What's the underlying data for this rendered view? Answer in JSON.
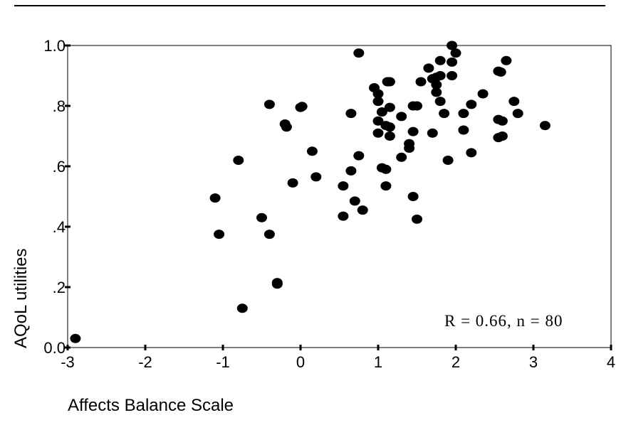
{
  "chart_data": {
    "type": "scatter",
    "xlabel": "Affects Balance Scale",
    "ylabel": "AQoL utilities",
    "xlim": [
      -3,
      4
    ],
    "ylim": [
      0,
      1
    ],
    "xticks": [
      -3,
      -2,
      -1,
      0,
      1,
      2,
      3,
      4
    ],
    "xtick_labels": [
      "-3",
      "-2",
      "-1",
      "0",
      "1",
      "2",
      "3",
      "4"
    ],
    "yticks": [
      0,
      0.2,
      0.4,
      0.6,
      0.8,
      1.0
    ],
    "ytick_labels": [
      "0.0",
      ".2",
      ".4",
      ".6",
      ".8",
      "1.0"
    ],
    "annotation": "R = 0.66, n = 80",
    "grid": false,
    "points": [
      [
        -2.9,
        0.03
      ],
      [
        -1.1,
        0.495
      ],
      [
        -1.05,
        0.375
      ],
      [
        -0.8,
        0.62
      ],
      [
        -0.75,
        0.13
      ],
      [
        -0.5,
        0.43
      ],
      [
        -0.4,
        0.805
      ],
      [
        -0.4,
        0.375
      ],
      [
        -0.3,
        0.215
      ],
      [
        -0.3,
        0.21
      ],
      [
        -0.2,
        0.74
      ],
      [
        -0.18,
        0.73
      ],
      [
        -0.1,
        0.545
      ],
      [
        0.0,
        0.795
      ],
      [
        0.15,
        0.65
      ],
      [
        0.2,
        0.565
      ],
      [
        0.55,
        0.535
      ],
      [
        0.55,
        0.435
      ],
      [
        0.65,
        0.775
      ],
      [
        0.65,
        0.585
      ],
      [
        0.7,
        0.485
      ],
      [
        0.75,
        0.975
      ],
      [
        0.75,
        0.635
      ],
      [
        0.8,
        0.455
      ],
      [
        0.95,
        0.86
      ],
      [
        1.0,
        0.84
      ],
      [
        1.0,
        0.815
      ],
      [
        1.0,
        0.75
      ],
      [
        1.0,
        0.71
      ],
      [
        1.05,
        0.78
      ],
      [
        1.05,
        0.595
      ],
      [
        1.1,
        0.735
      ],
      [
        1.1,
        0.59
      ],
      [
        1.1,
        0.535
      ],
      [
        1.15,
        0.88
      ],
      [
        1.15,
        0.795
      ],
      [
        1.15,
        0.73
      ],
      [
        1.15,
        0.7
      ],
      [
        1.3,
        0.765
      ],
      [
        1.3,
        0.63
      ],
      [
        1.4,
        0.675
      ],
      [
        1.4,
        0.66
      ],
      [
        1.45,
        0.8
      ],
      [
        1.45,
        0.715
      ],
      [
        1.45,
        0.5
      ],
      [
        1.5,
        0.425
      ],
      [
        1.55,
        0.88
      ],
      [
        1.65,
        0.925
      ],
      [
        1.7,
        0.89
      ],
      [
        1.7,
        0.71
      ],
      [
        1.75,
        0.895
      ],
      [
        1.75,
        0.87
      ],
      [
        1.75,
        0.845
      ],
      [
        1.8,
        0.95
      ],
      [
        1.8,
        0.9
      ],
      [
        1.8,
        0.815
      ],
      [
        1.85,
        0.775
      ],
      [
        1.9,
        0.62
      ],
      [
        1.95,
        1.0
      ],
      [
        1.95,
        0.945
      ],
      [
        1.95,
        0.9
      ],
      [
        2.0,
        0.975
      ],
      [
        2.1,
        0.775
      ],
      [
        2.1,
        0.72
      ],
      [
        2.2,
        0.805
      ],
      [
        2.2,
        0.645
      ],
      [
        2.35,
        0.84
      ],
      [
        2.55,
        0.915
      ],
      [
        2.55,
        0.755
      ],
      [
        2.55,
        0.695
      ],
      [
        2.58,
        0.912
      ],
      [
        2.6,
        0.75
      ],
      [
        2.6,
        0.7
      ],
      [
        2.65,
        0.95
      ],
      [
        2.75,
        0.815
      ],
      [
        2.8,
        0.775
      ],
      [
        3.15,
        0.735
      ],
      [
        0.02,
        0.798
      ],
      [
        1.12,
        0.88
      ],
      [
        1.5,
        0.8
      ]
    ]
  }
}
